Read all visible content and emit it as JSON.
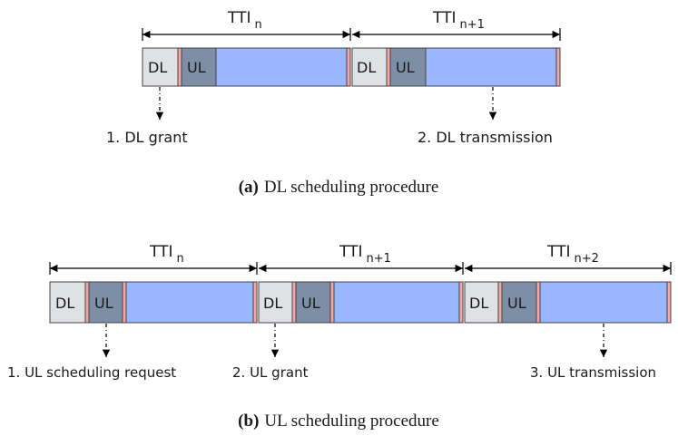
{
  "colors": {
    "dl_segment": "#dfe1e4",
    "ul_segment": "#7e8ea6",
    "data_segment": "#99b6ff",
    "guard_segment": "#f4a7a7",
    "line": "#000000"
  },
  "diagram_a": {
    "tti_labels": [
      {
        "base": "TTI",
        "sub": "n"
      },
      {
        "base": "TTI",
        "sub": "n+1"
      }
    ],
    "frame_labels": [
      {
        "dl": "DL",
        "ul": "UL"
      },
      {
        "dl": "DL",
        "ul": "UL"
      }
    ],
    "events": [
      "1. DL grant",
      "2. DL transmission"
    ],
    "caption_tag": "(a)",
    "caption_text": "DL scheduling procedure"
  },
  "diagram_b": {
    "tti_labels": [
      {
        "base": "TTI",
        "sub": "n"
      },
      {
        "base": "TTI",
        "sub": "n+1"
      },
      {
        "base": "TTI",
        "sub": "n+2"
      }
    ],
    "frame_labels": [
      {
        "dl": "DL",
        "ul": "UL"
      },
      {
        "dl": "DL",
        "ul": "UL"
      },
      {
        "dl": "DL",
        "ul": "UL"
      }
    ],
    "events": [
      "1. UL scheduling request",
      "2. UL grant",
      "3. UL transmission"
    ],
    "caption_tag": "(b)",
    "caption_text": "UL scheduling procedure"
  }
}
